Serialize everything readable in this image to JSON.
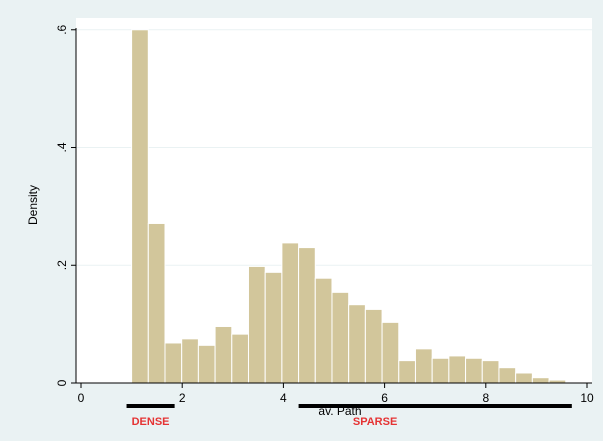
{
  "chart_data": {
    "type": "bar",
    "subtype": "histogram",
    "ylabel": "Density",
    "xlabel": "av. Path",
    "xlim": [
      0,
      10
    ],
    "ylim": [
      0,
      0.62
    ],
    "x_ticks": [
      0,
      2,
      4,
      6,
      8,
      10
    ],
    "x_tick_labels": [
      "0",
      "2",
      "4",
      "6",
      "8",
      "10"
    ],
    "y_ticks": [
      0,
      0.2,
      0.4,
      0.6
    ],
    "y_tick_labels": [
      "0",
      ".2",
      ".4",
      ".6"
    ],
    "grid": true,
    "bin_width": 0.33,
    "bins": [
      {
        "x": 1.0,
        "value": 0.6
      },
      {
        "x": 1.33,
        "value": 0.271
      },
      {
        "x": 1.66,
        "value": 0.068
      },
      {
        "x": 1.99,
        "value": 0.075
      },
      {
        "x": 2.32,
        "value": 0.064
      },
      {
        "x": 2.65,
        "value": 0.096
      },
      {
        "x": 2.98,
        "value": 0.083
      },
      {
        "x": 3.31,
        "value": 0.198
      },
      {
        "x": 3.64,
        "value": 0.188
      },
      {
        "x": 3.97,
        "value": 0.238
      },
      {
        "x": 4.3,
        "value": 0.23
      },
      {
        "x": 4.63,
        "value": 0.178
      },
      {
        "x": 4.96,
        "value": 0.154
      },
      {
        "x": 5.29,
        "value": 0.133
      },
      {
        "x": 5.62,
        "value": 0.125
      },
      {
        "x": 5.95,
        "value": 0.103
      },
      {
        "x": 6.28,
        "value": 0.038
      },
      {
        "x": 6.61,
        "value": 0.058
      },
      {
        "x": 6.94,
        "value": 0.042
      },
      {
        "x": 7.27,
        "value": 0.046
      },
      {
        "x": 7.6,
        "value": 0.042
      },
      {
        "x": 7.93,
        "value": 0.038
      },
      {
        "x": 8.26,
        "value": 0.026
      },
      {
        "x": 8.59,
        "value": 0.017
      },
      {
        "x": 8.92,
        "value": 0.009
      },
      {
        "x": 9.25,
        "value": 0.005
      }
    ],
    "annotations": [
      {
        "label": "DENSE",
        "x_start": 0.9,
        "x_end": 1.85
      },
      {
        "label": "SPARSE",
        "x_start": 4.3,
        "x_end": 9.7
      }
    ]
  },
  "colors": {
    "background": "#eaf2f3",
    "plot_background": "#ffffff",
    "bar_fill": "#d2c69b",
    "bar_stroke": "#ffffff",
    "annotation_text": "#e53333",
    "annotation_line": "#000000",
    "grid": "#eaf2f3"
  }
}
